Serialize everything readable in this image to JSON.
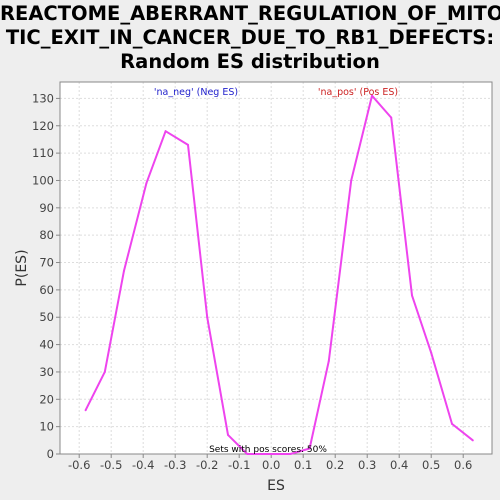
{
  "chart_data": {
    "type": "line",
    "title_lines": [
      "REACTOME_ABERRANT_REGULATION_OF_MITO",
      "TIC_EXIT_IN_CANCER_DUE_TO_RB1_DEFECTS:",
      "Random ES distribution"
    ],
    "xlabel": "ES",
    "ylabel": "P(ES)",
    "xlim": [
      -0.66,
      0.69
    ],
    "ylim": [
      0,
      136
    ],
    "x_ticks": [
      -0.6,
      -0.5,
      -0.4,
      -0.3,
      -0.2,
      -0.1,
      0.0,
      0.1,
      0.2,
      0.3,
      0.4,
      0.5,
      0.6
    ],
    "x_tick_labels": [
      "-0.6",
      "-0.5",
      "-0.4",
      "-0.3",
      "-0.2",
      "-0.1",
      "0.0",
      "0.1",
      "0.2",
      "0.3",
      "0.4",
      "0.5",
      "0.6"
    ],
    "y_ticks": [
      0,
      10,
      20,
      30,
      40,
      50,
      60,
      70,
      80,
      90,
      100,
      110,
      120,
      130
    ],
    "grid": true,
    "series": [
      {
        "color": "#ee44ee",
        "points": [
          [
            -0.58,
            16
          ],
          [
            -0.52,
            30
          ],
          [
            -0.46,
            67
          ],
          [
            -0.39,
            99
          ],
          [
            -0.33,
            118
          ],
          [
            -0.26,
            113
          ],
          [
            -0.2,
            50
          ],
          [
            -0.135,
            7
          ],
          [
            -0.075,
            0
          ],
          [
            0.0,
            0
          ],
          [
            0.06,
            0
          ],
          [
            0.12,
            2
          ],
          [
            0.18,
            34
          ],
          [
            0.25,
            100
          ],
          [
            0.315,
            131
          ],
          [
            0.375,
            123
          ],
          [
            0.44,
            58
          ],
          [
            0.5,
            37
          ],
          [
            0.565,
            11
          ],
          [
            0.63,
            5
          ]
        ]
      }
    ],
    "annotations": {
      "neg_label": "'na_neg' (Neg ES)",
      "pos_label": "'na_pos' (Pos ES)",
      "footer": "Sets with pos scores: 50%"
    },
    "colors": {
      "neg_label": "#2222cc",
      "pos_label": "#cc2222",
      "line": "#ee44ee",
      "plot_bg": "#ffffff",
      "page_bg": "#eeeeee"
    }
  }
}
